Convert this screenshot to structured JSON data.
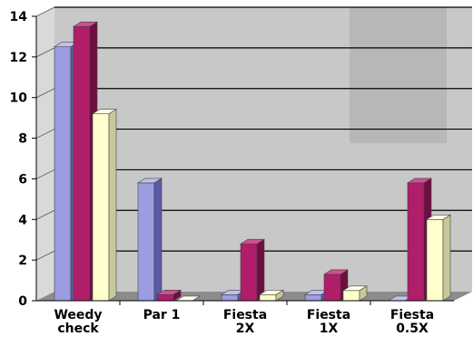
{
  "chart_data": {
    "type": "bar",
    "style": "3d-clustered-column",
    "title": "",
    "xlabel": "",
    "ylabel": "",
    "ylim": [
      0,
      14
    ],
    "yticks": [
      0,
      2,
      4,
      6,
      8,
      10,
      12,
      14
    ],
    "grid": true,
    "legend": "none",
    "categories": [
      {
        "line1": "Weedy",
        "line2": "check"
      },
      {
        "line1": "Par 1",
        "line2": ""
      },
      {
        "line1": "Fiesta",
        "line2": "2X"
      },
      {
        "line1": "Fiesta",
        "line2": "1X"
      },
      {
        "line1": "Fiesta",
        "line2": "0.5X"
      }
    ],
    "series": [
      {
        "values": [
          12.5,
          5.8,
          0.3,
          0.3,
          0.0
        ]
      },
      {
        "values": [
          13.5,
          0.3,
          2.8,
          1.3,
          5.8
        ]
      },
      {
        "values": [
          9.2,
          0.0,
          0.3,
          0.5,
          4.0
        ]
      }
    ],
    "colors": {
      "series_front": [
        "#9c9ce0",
        "#b01e6a",
        "#ffffcc"
      ],
      "series_side": [
        "#5a5aa8",
        "#6e0d40",
        "#c8c89a"
      ],
      "series_top": [
        "#bfbff0",
        "#d05090",
        "#ffffe8"
      ],
      "wall": "#c8c8c8",
      "floor": "#8c8c8c",
      "gridline": "#000000",
      "overlay": "#b4b4b4"
    }
  }
}
